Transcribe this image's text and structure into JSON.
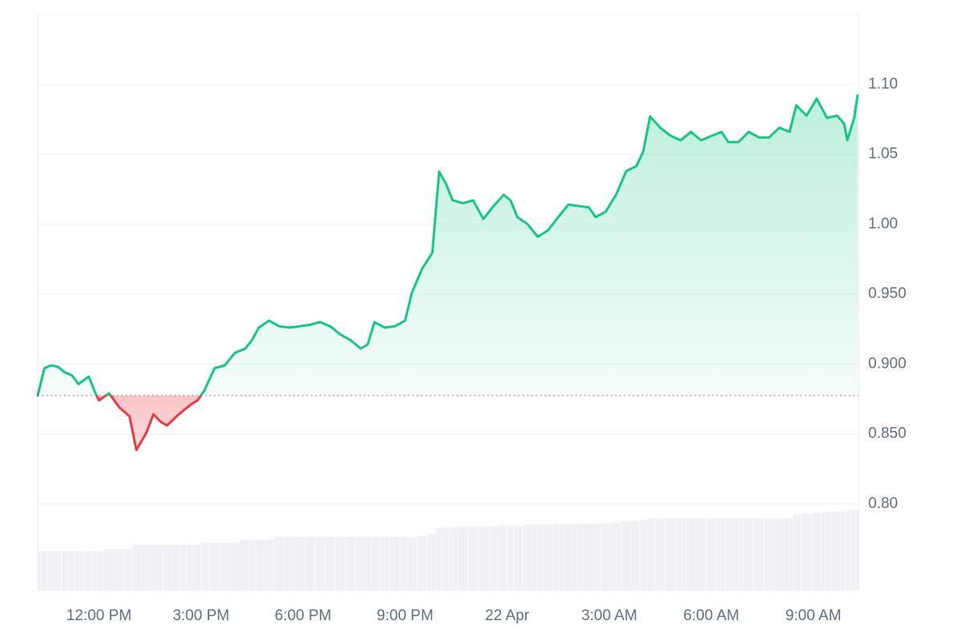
{
  "chart_data": {
    "type": "price-area",
    "x": [
      10.2,
      10.4,
      10.6,
      10.8,
      11.0,
      11.2,
      11.4,
      11.7,
      11.9,
      12.0,
      12.3,
      12.6,
      12.9,
      13.1,
      13.4,
      13.6,
      13.8,
      14.0,
      14.3,
      14.5,
      14.7,
      14.9,
      15.1,
      15.4,
      15.7,
      16.0,
      16.3,
      16.5,
      16.7,
      17.0,
      17.3,
      17.6,
      17.9,
      18.2,
      18.5,
      18.8,
      19.1,
      19.4,
      19.7,
      19.9,
      20.1,
      20.4,
      20.7,
      21.0,
      21.2,
      21.5,
      21.8,
      22.0,
      22.2,
      22.4,
      22.7,
      23.0,
      23.3,
      23.6,
      23.9,
      24.1,
      24.3,
      24.6,
      24.9,
      25.2,
      25.5,
      25.8,
      26.1,
      26.4,
      26.6,
      26.9,
      27.2,
      27.5,
      27.8,
      28.0,
      28.2,
      28.5,
      28.8,
      29.1,
      29.4,
      29.7,
      30.0,
      30.3,
      30.5,
      30.8,
      31.1,
      31.4,
      31.7,
      32.0,
      32.3,
      32.5,
      32.8,
      33.1,
      33.4,
      33.7,
      33.9,
      34.0,
      34.2,
      34.3
    ],
    "values": [
      0.8775,
      0.897,
      0.899,
      0.898,
      0.894,
      0.892,
      0.8856,
      0.891,
      0.879,
      0.874,
      0.879,
      0.869,
      0.8626,
      0.8385,
      0.851,
      0.864,
      0.859,
      0.856,
      0.863,
      0.867,
      0.871,
      0.874,
      0.881,
      0.897,
      0.899,
      0.908,
      0.911,
      0.917,
      0.926,
      0.931,
      0.927,
      0.926,
      0.927,
      0.928,
      0.93,
      0.927,
      0.921,
      0.917,
      0.911,
      0.914,
      0.93,
      0.926,
      0.927,
      0.931,
      0.951,
      0.968,
      0.9796,
      1.0375,
      1.029,
      1.017,
      1.015,
      1.017,
      1.0037,
      1.013,
      1.021,
      1.017,
      1.005,
      1.0,
      0.991,
      0.9956,
      1.005,
      1.014,
      1.013,
      1.012,
      1.005,
      1.009,
      1.021,
      1.038,
      1.0415,
      1.052,
      1.077,
      1.069,
      1.0633,
      1.06,
      1.066,
      1.06,
      1.063,
      1.066,
      1.0587,
      1.0587,
      1.066,
      1.062,
      1.062,
      1.069,
      1.066,
      1.085,
      1.0776,
      1.0897,
      1.076,
      1.0776,
      1.072,
      1.06,
      1.076,
      1.092
    ],
    "volume": [
      6.8,
      6.8,
      6.8,
      6.8,
      6.8,
      6.8,
      6.8,
      6.8,
      6.8,
      6.8,
      7.2,
      7.2,
      7.2,
      7.9,
      7.9,
      7.9,
      7.9,
      7.9,
      7.9,
      7.9,
      7.9,
      7.9,
      8.3,
      8.3,
      8.3,
      8.3,
      8.8,
      8.8,
      8.8,
      8.8,
      9.3,
      9.3,
      9.3,
      9.3,
      9.3,
      9.3,
      9.3,
      9.3,
      9.3,
      9.3,
      9.3,
      9.3,
      9.3,
      9.3,
      9.2,
      9.5,
      9.8,
      10.9,
      11.0,
      11.0,
      11.1,
      11.1,
      11.1,
      11.2,
      11.3,
      11.3,
      11.3,
      11.4,
      11.4,
      11.4,
      11.5,
      11.5,
      11.6,
      11.6,
      11.6,
      11.7,
      11.8,
      12.0,
      12.1,
      12.3,
      12.6,
      12.6,
      12.6,
      12.6,
      12.6,
      12.6,
      12.6,
      12.6,
      12.6,
      12.6,
      12.6,
      12.6,
      12.6,
      12.6,
      12.6,
      13.1,
      13.3,
      13.5,
      13.7,
      13.8,
      13.9,
      14.0,
      14.1,
      14.2
    ],
    "baseline": 0.8775,
    "up_color": "#16c784",
    "down_color": "#ea3943",
    "volume_color": "#eff1f5",
    "xlim": [
      10.2,
      34.33
    ],
    "xticks": [
      {
        "value": 12,
        "label": "12:00 PM"
      },
      {
        "value": 15,
        "label": "3:00 PM"
      },
      {
        "value": 18,
        "label": "6:00 PM"
      },
      {
        "value": 21,
        "label": "9:00 PM"
      },
      {
        "value": 24,
        "label": "22 Apr"
      },
      {
        "value": 27,
        "label": "3:00 AM"
      },
      {
        "value": 30,
        "label": "6:00 AM"
      },
      {
        "value": 33,
        "label": "9:00 AM"
      }
    ],
    "ylim": [
      0.738,
      1.15
    ],
    "yticks": [
      {
        "value": 0.8,
        "label": "0.80"
      },
      {
        "value": 0.85,
        "label": "0.850"
      },
      {
        "value": 0.9,
        "label": "0.900"
      },
      {
        "value": 0.95,
        "label": "0.950"
      },
      {
        "value": 1.0,
        "label": "1.00"
      },
      {
        "value": 1.05,
        "label": "1.05"
      },
      {
        "value": 1.1,
        "label": "1.10"
      }
    ],
    "y2lim": [
      0,
      100
    ],
    "grid": true
  }
}
